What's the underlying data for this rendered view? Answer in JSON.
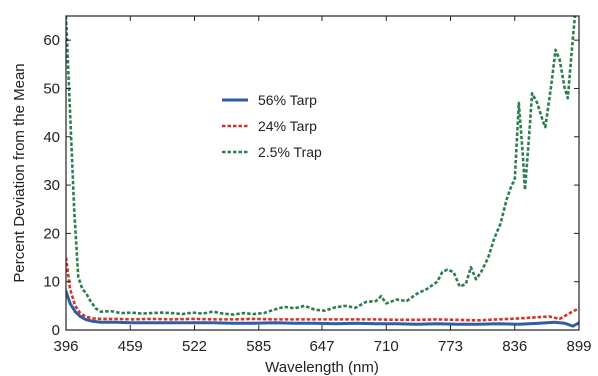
{
  "chart_data": {
    "type": "line",
    "title": "",
    "xlabel": "Wavelength (nm)",
    "ylabel": "Percent Deviation from the Mean",
    "xlim": [
      396,
      899
    ],
    "ylim": [
      0,
      65
    ],
    "x_ticks": [
      396,
      459,
      522,
      585,
      647,
      710,
      773,
      836,
      899
    ],
    "x_tick_labels": [
      "396",
      "459",
      "522",
      "585",
      "647",
      "710",
      "773",
      "836",
      "899"
    ],
    "y_ticks": [
      0,
      10,
      20,
      30,
      40,
      50,
      60
    ],
    "y_tick_labels": [
      "0",
      "10",
      "20",
      "30",
      "40",
      "50",
      "60"
    ],
    "grid": false,
    "legend_position": "upper-middle",
    "series": [
      {
        "name": "56% Tarp",
        "color": "#2e5fa1",
        "style": "solid",
        "points": [
          [
            396,
            8.0
          ],
          [
            400,
            5.5
          ],
          [
            405,
            3.8
          ],
          [
            410,
            2.8
          ],
          [
            415,
            2.2
          ],
          [
            422,
            1.8
          ],
          [
            430,
            1.6
          ],
          [
            445,
            1.6
          ],
          [
            460,
            1.5
          ],
          [
            480,
            1.5
          ],
          [
            500,
            1.5
          ],
          [
            520,
            1.5
          ],
          [
            540,
            1.5
          ],
          [
            560,
            1.4
          ],
          [
            580,
            1.4
          ],
          [
            600,
            1.5
          ],
          [
            620,
            1.4
          ],
          [
            640,
            1.4
          ],
          [
            660,
            1.3
          ],
          [
            680,
            1.4
          ],
          [
            700,
            1.3
          ],
          [
            720,
            1.3
          ],
          [
            740,
            1.2
          ],
          [
            760,
            1.3
          ],
          [
            780,
            1.2
          ],
          [
            800,
            1.2
          ],
          [
            820,
            1.3
          ],
          [
            840,
            1.2
          ],
          [
            860,
            1.4
          ],
          [
            875,
            1.6
          ],
          [
            885,
            1.4
          ],
          [
            893,
            0.8
          ],
          [
            899,
            1.5
          ]
        ]
      },
      {
        "name": "24% Tarp",
        "color": "#d0342c",
        "style": "dotted",
        "points": [
          [
            396,
            15.0
          ],
          [
            400,
            8.5
          ],
          [
            405,
            5.0
          ],
          [
            410,
            3.5
          ],
          [
            415,
            2.8
          ],
          [
            422,
            2.4
          ],
          [
            430,
            2.3
          ],
          [
            445,
            2.3
          ],
          [
            460,
            2.2
          ],
          [
            480,
            2.3
          ],
          [
            500,
            2.2
          ],
          [
            520,
            2.3
          ],
          [
            540,
            2.2
          ],
          [
            560,
            2.2
          ],
          [
            580,
            2.3
          ],
          [
            600,
            2.2
          ],
          [
            620,
            2.2
          ],
          [
            640,
            2.2
          ],
          [
            660,
            2.2
          ],
          [
            680,
            2.2
          ],
          [
            700,
            2.2
          ],
          [
            720,
            2.1
          ],
          [
            740,
            2.1
          ],
          [
            760,
            2.2
          ],
          [
            780,
            2.1
          ],
          [
            800,
            2.0
          ],
          [
            820,
            2.2
          ],
          [
            840,
            2.4
          ],
          [
            855,
            2.6
          ],
          [
            870,
            2.8
          ],
          [
            880,
            2.3
          ],
          [
            890,
            3.5
          ],
          [
            899,
            4.5
          ]
        ]
      },
      {
        "name": "2.5% Trap",
        "color": "#2e7d4f",
        "style": "dotted",
        "points": [
          [
            396,
            65.0
          ],
          [
            400,
            45.0
          ],
          [
            404,
            25.0
          ],
          [
            408,
            11.0
          ],
          [
            412,
            8.5
          ],
          [
            416,
            7.5
          ],
          [
            420,
            6.0
          ],
          [
            425,
            4.5
          ],
          [
            430,
            3.8
          ],
          [
            440,
            3.9
          ],
          [
            450,
            3.5
          ],
          [
            460,
            3.6
          ],
          [
            470,
            3.4
          ],
          [
            480,
            3.5
          ],
          [
            490,
            3.6
          ],
          [
            500,
            3.5
          ],
          [
            510,
            3.3
          ],
          [
            520,
            3.6
          ],
          [
            530,
            3.4
          ],
          [
            540,
            3.8
          ],
          [
            550,
            3.4
          ],
          [
            560,
            3.2
          ],
          [
            570,
            3.5
          ],
          [
            580,
            3.3
          ],
          [
            590,
            3.5
          ],
          [
            600,
            4.2
          ],
          [
            610,
            4.8
          ],
          [
            620,
            4.5
          ],
          [
            630,
            5.0
          ],
          [
            640,
            4.2
          ],
          [
            650,
            4.0
          ],
          [
            660,
            4.7
          ],
          [
            670,
            5.0
          ],
          [
            680,
            4.6
          ],
          [
            690,
            5.8
          ],
          [
            700,
            6.0
          ],
          [
            705,
            7.0
          ],
          [
            710,
            5.5
          ],
          [
            720,
            6.3
          ],
          [
            730,
            6.0
          ],
          [
            740,
            7.5
          ],
          [
            750,
            8.5
          ],
          [
            760,
            10.0
          ],
          [
            765,
            12.0
          ],
          [
            770,
            12.5
          ],
          [
            776,
            12.0
          ],
          [
            782,
            9.0
          ],
          [
            788,
            9.5
          ],
          [
            793,
            13.0
          ],
          [
            798,
            10.5
          ],
          [
            803,
            12.0
          ],
          [
            810,
            15.0
          ],
          [
            816,
            19.0
          ],
          [
            822,
            22.0
          ],
          [
            828,
            27.0
          ],
          [
            833,
            30.0
          ],
          [
            836,
            31.0
          ],
          [
            840,
            47.0
          ],
          [
            844,
            36.0
          ],
          [
            846,
            29.0
          ],
          [
            850,
            40.0
          ],
          [
            853,
            49.0
          ],
          [
            858,
            47.0
          ],
          [
            864,
            43.0
          ],
          [
            866,
            42.0
          ],
          [
            872,
            51.0
          ],
          [
            876,
            58.0
          ],
          [
            880,
            56.0
          ],
          [
            885,
            50.0
          ],
          [
            888,
            48.0
          ],
          [
            892,
            58.0
          ],
          [
            895,
            65.0
          ]
        ]
      }
    ]
  }
}
